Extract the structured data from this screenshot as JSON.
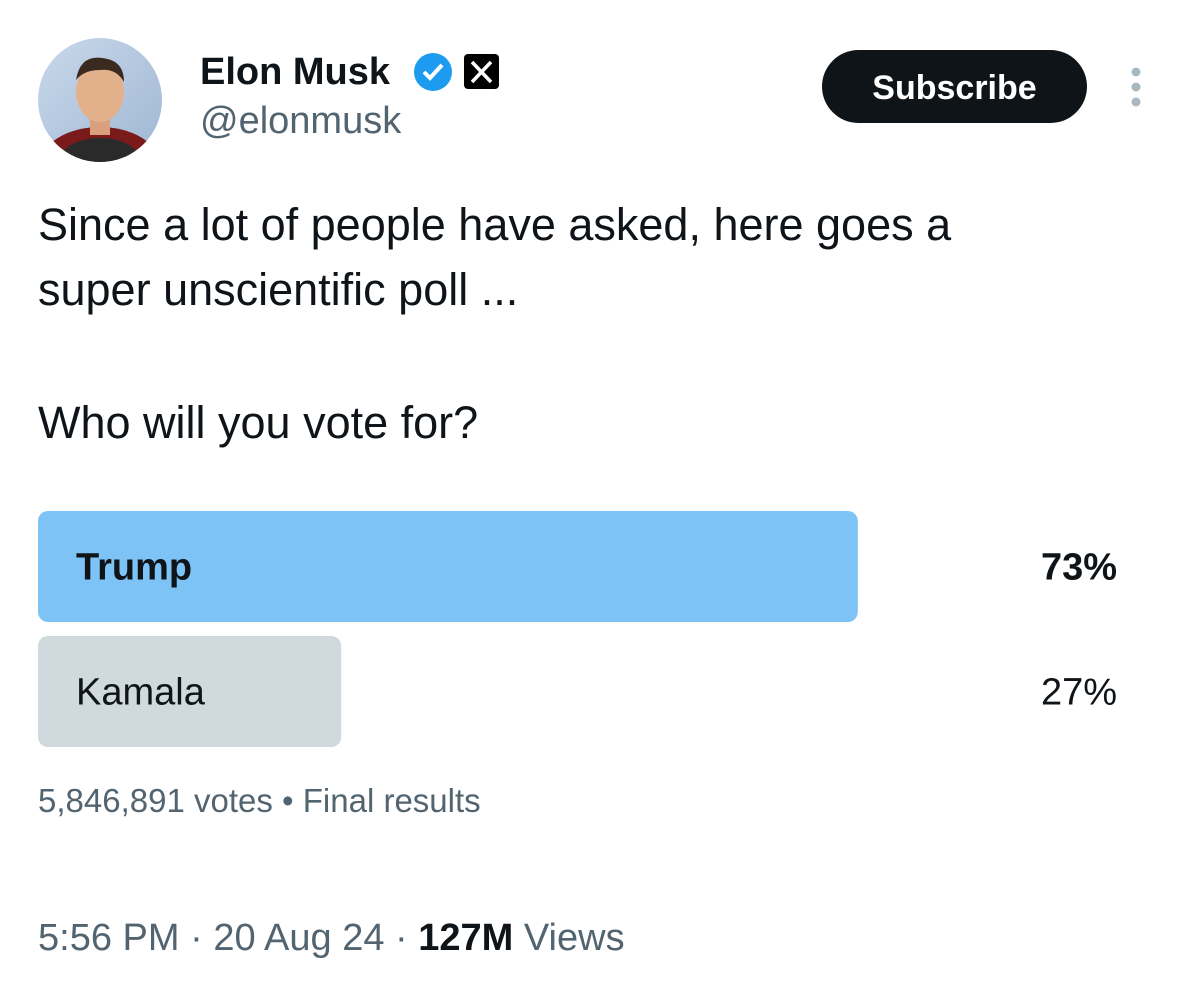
{
  "header": {
    "name": "Elon Musk",
    "handle": "@elonmusk",
    "button": "Subscribe"
  },
  "tweet": {
    "lines": [
      "Since a lot of people have asked, here goes a",
      "super unscientific poll ...",
      "Who will you vote for?"
    ]
  },
  "poll": {
    "options": [
      {
        "label": "Trump",
        "value": 73,
        "value_label": "73%",
        "leading": true
      },
      {
        "label": "Kamala",
        "value": 27,
        "value_label": "27%",
        "leading": false
      }
    ],
    "votes": "5,846,891 votes",
    "separator": "•",
    "status": "Final results"
  },
  "footer": {
    "time": "5:56 PM",
    "separator": "·",
    "date": "20 Aug 24",
    "views_count": "127M",
    "views_label": "Views"
  }
}
